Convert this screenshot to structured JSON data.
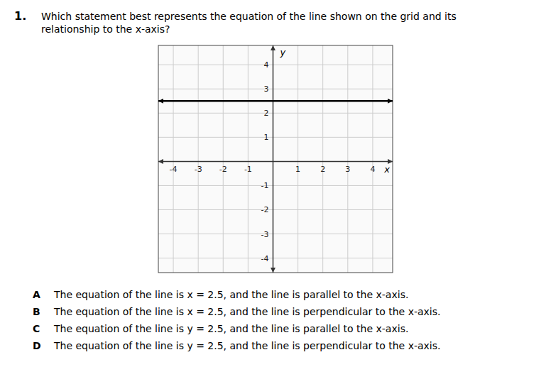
{
  "chart_data": {
    "type": "hline",
    "title": "Which statement best represents the equation of the line shown on the grid and its\nrelationship to the x-axis?",
    "xlabel": "x",
    "ylabel": "y",
    "values": [
      2.5
    ],
    "color": "#000000",
    "xlim": [
      -4.6,
      4.8
    ],
    "ylim": [
      -4.6,
      4.8
    ],
    "xticks": [
      -4,
      -3,
      -2,
      -1,
      1,
      2,
      3,
      4
    ],
    "yticks": [
      -4,
      -3,
      -2,
      -1,
      1,
      2,
      3,
      4
    ],
    "grid": true,
    "annotations": [
      "1.",
      "A",
      "The equation of the line is x = 2.5, and the line is parallel to the x-axis.",
      "B",
      "The equation of the line is x = 2.5, and the line is perpendicular to the x-axis.",
      "C",
      "The equation of the line is y = 2.5, and the line is parallel to the x-axis.",
      "D",
      "The equation of the line is y = 2.5, and the line is perpendicular to the x-axis."
    ]
  }
}
